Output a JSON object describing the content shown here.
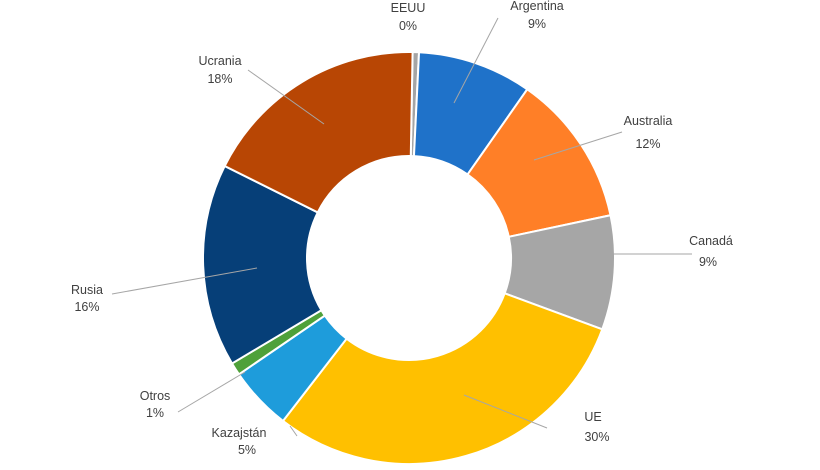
{
  "chart_data": {
    "type": "pie",
    "donut": true,
    "title": "",
    "legend": "none",
    "slices": [
      {
        "name": "EEUU",
        "label": "0%",
        "value": 0.5,
        "color": "#a5a5a5"
      },
      {
        "name": "Argentina",
        "label": "9%",
        "value": 9,
        "color": "#1f72c9"
      },
      {
        "name": "Australia",
        "label": "12%",
        "value": 12,
        "color": "#ff7f27"
      },
      {
        "name": "Canadá",
        "label": "9%",
        "value": 9,
        "color": "#a6a6a6"
      },
      {
        "name": "UE",
        "label": "30%",
        "value": 30,
        "color": "#ffc000"
      },
      {
        "name": "Kazajstán",
        "label": "5%",
        "value": 5,
        "color": "#1e9cdb"
      },
      {
        "name": "Otros",
        "label": "1%",
        "value": 1,
        "color": "#4fa13a"
      },
      {
        "name": "Rusia",
        "label": "16%",
        "value": 16,
        "color": "#063f78"
      },
      {
        "name": "Ucrania",
        "label": "18%",
        "value": 18,
        "color": "#b84604"
      }
    ]
  }
}
